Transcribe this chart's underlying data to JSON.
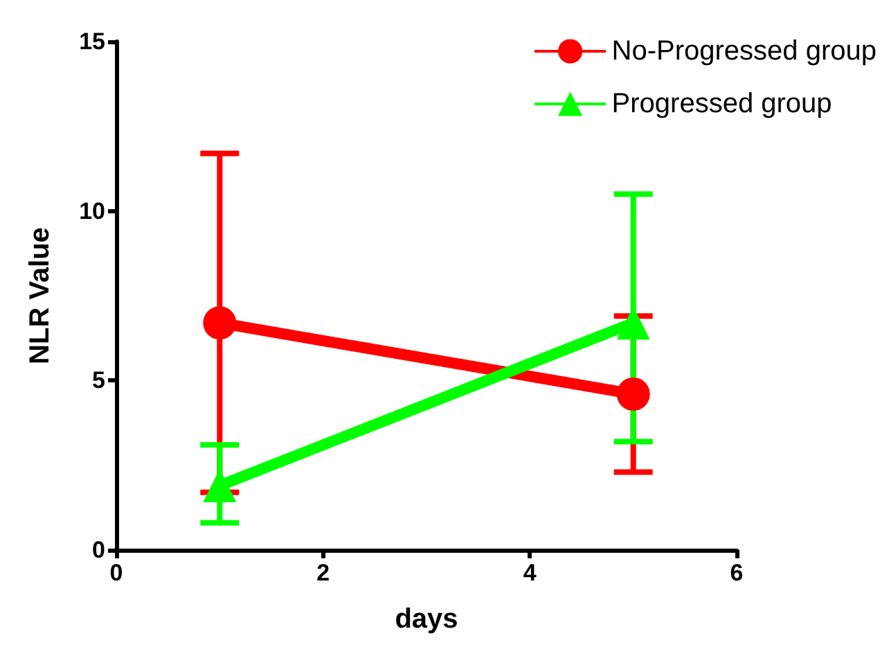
{
  "chart_data": {
    "type": "line",
    "xlabel": "days",
    "ylabel": "NLR Value",
    "x": [
      1,
      5
    ],
    "series": [
      {
        "name": "No-Progressed group",
        "color": "#ff0000",
        "values": [
          6.7,
          4.6
        ],
        "errors": [
          5.0,
          2.3
        ],
        "marker": "circle"
      },
      {
        "name": "Progressed group",
        "color": "#00ff00",
        "values": [
          1.9,
          6.7
        ],
        "errors": [
          [
            0.8,
            3.1
          ],
          [
            3.2,
            10.5
          ]
        ],
        "marker": "triangle"
      }
    ],
    "xlim": [
      0,
      6
    ],
    "xticks": [
      0,
      2,
      4,
      6
    ],
    "ylim": [
      0,
      15
    ],
    "yticks": [
      0,
      5,
      10,
      15
    ],
    "grid": false,
    "legend": "top right",
    "line_style": "solid"
  }
}
